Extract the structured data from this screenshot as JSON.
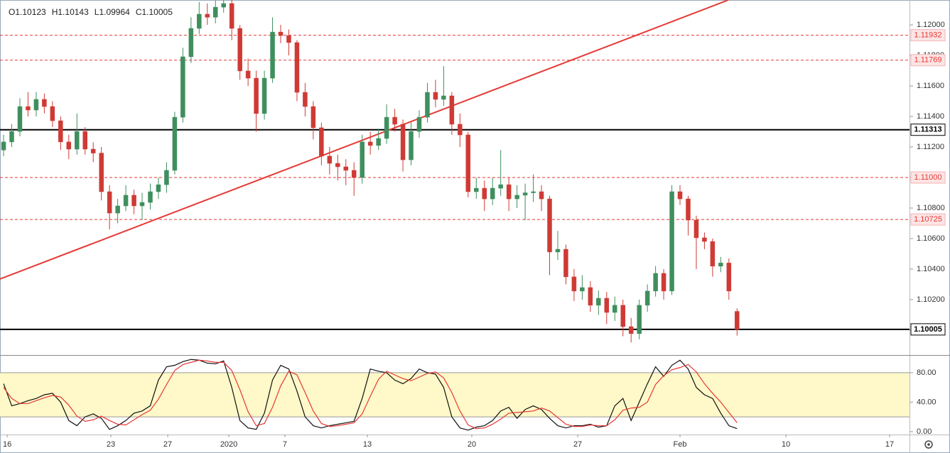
{
  "chart_data": {
    "type": "candlestick",
    "ohlc_legend": [
      "O1.10123",
      "H1.10143",
      "L1.09964",
      "C1.10005"
    ],
    "open": [
      1.1118,
      1.11233,
      1.11302,
      1.11465,
      1.11442,
      1.11512,
      1.11465,
      1.11372,
      1.11233,
      1.11186,
      1.11302,
      1.11186,
      1.1116,
      1.10907,
      1.10767,
      1.10814,
      1.10884,
      1.10814,
      1.10837,
      1.10907,
      1.10953,
      1.11047,
      1.11395,
      1.11791,
      1.11977,
      1.1207,
      1.1205,
      1.12116,
      1.1214,
      1.11977,
      1.11698,
      1.11651,
      1.11419,
      1.11651,
      1.11953,
      1.1193,
      1.11884,
      1.11558,
      1.11465,
      1.11326,
      1.1114,
      1.11093,
      1.1107,
      1.11047,
      1.11,
      1.11233,
      1.1121,
      1.11256,
      1.11395,
      1.11349,
      1.11116,
      1.11302,
      1.11395,
      1.11558,
      1.11512,
      1.11535,
      1.11349,
      1.11279,
      1.10907,
      1.1093,
      1.1086,
      1.1093,
      1.10953,
      1.1086,
      1.10884,
      1.109,
      1.10907,
      1.1086,
      1.10512,
      1.1053,
      1.10349,
      1.10256,
      1.10279,
      1.10163,
      1.10209,
      1.10116,
      1.10163,
      1.10023,
      1.09977,
      1.10163,
      1.10256,
      1.10372,
      1.10256,
      1.10907,
      1.1086,
      1.10721,
      1.10605,
      1.10581,
      1.10419,
      1.1044,
      1.10123
    ],
    "high": [
      1.1128,
      1.1135,
      1.1152,
      1.1156,
      1.1156,
      1.1155,
      1.115,
      1.114,
      1.1128,
      1.1142,
      1.1133,
      1.1123,
      1.112,
      1.1095,
      1.1086,
      1.1095,
      1.1092,
      1.109,
      1.1096,
      1.11,
      1.111,
      1.1143,
      1.1185,
      1.1205,
      1.1215,
      1.1214,
      1.1216,
      1.1217,
      1.1217,
      1.12,
      1.1178,
      1.117,
      1.117,
      1.1205,
      1.12,
      1.1197,
      1.119,
      1.1162,
      1.115,
      1.1136,
      1.112,
      1.1115,
      1.1112,
      1.111,
      1.1128,
      1.113,
      1.1132,
      1.1148,
      1.1145,
      1.1138,
      1.1136,
      1.1144,
      1.1162,
      1.1164,
      1.1173,
      1.1156,
      1.1142,
      1.113,
      1.11,
      1.1098,
      1.11,
      1.1118,
      1.11,
      1.1095,
      1.1096,
      1.1102,
      1.1095,
      1.1088,
      1.1065,
      1.1056,
      1.104,
      1.1036,
      1.1032,
      1.1026,
      1.1025,
      1.1022,
      1.102,
      1.1008,
      1.102,
      1.103,
      1.1042,
      1.104,
      1.1095,
      1.1095,
      1.1088,
      1.1075,
      1.1064,
      1.106,
      1.1048,
      1.1047,
      1.10143
    ],
    "low": [
      1.1114,
      1.112,
      1.1127,
      1.114,
      1.114,
      1.1142,
      1.1133,
      1.1118,
      1.1112,
      1.1115,
      1.1115,
      1.111,
      1.1085,
      1.1066,
      1.107,
      1.1078,
      1.1076,
      1.1072,
      1.1079,
      1.1086,
      1.109,
      1.1102,
      1.1136,
      1.1175,
      1.1194,
      1.12,
      1.1201,
      1.1208,
      1.119,
      1.1164,
      1.116,
      1.113,
      1.1138,
      1.1162,
      1.1188,
      1.118,
      1.115,
      1.114,
      1.1125,
      1.1108,
      1.1102,
      1.1098,
      1.1095,
      1.1088,
      1.1096,
      1.1115,
      1.1118,
      1.1122,
      1.113,
      1.1104,
      1.1108,
      1.1126,
      1.1136,
      1.1146,
      1.1147,
      1.1128,
      1.112,
      1.1087,
      1.1086,
      1.1078,
      1.1082,
      1.1088,
      1.1078,
      1.108,
      1.1072,
      1.1084,
      1.1078,
      1.1036,
      1.1046,
      1.103,
      1.1019,
      1.102,
      1.1012,
      1.101,
      1.1004,
      1.1006,
      1.0996,
      1.0992,
      1.0994,
      1.1012,
      1.1022,
      1.102,
      1.1023,
      1.1082,
      1.1062,
      1.104,
      1.1053,
      1.1035,
      1.1038,
      1.102,
      1.09964
    ],
    "close": [
      1.11233,
      1.11302,
      1.11465,
      1.11442,
      1.11512,
      1.11465,
      1.11372,
      1.11233,
      1.11186,
      1.11302,
      1.11186,
      1.1116,
      1.10907,
      1.10767,
      1.10814,
      1.10884,
      1.10814,
      1.10837,
      1.10907,
      1.10953,
      1.11047,
      1.11395,
      1.11791,
      1.11977,
      1.1207,
      1.1205,
      1.12116,
      1.1214,
      1.11977,
      1.11698,
      1.11651,
      1.11419,
      1.11651,
      1.11953,
      1.1193,
      1.11884,
      1.11558,
      1.11465,
      1.11326,
      1.1114,
      1.11093,
      1.1107,
      1.11047,
      1.11,
      1.11233,
      1.1121,
      1.11256,
      1.11395,
      1.11349,
      1.11116,
      1.11302,
      1.11395,
      1.11558,
      1.11512,
      1.11535,
      1.11349,
      1.11279,
      1.10907,
      1.1093,
      1.1086,
      1.1093,
      1.10953,
      1.1086,
      1.10884,
      1.109,
      1.10907,
      1.1086,
      1.10512,
      1.1053,
      1.10349,
      1.10256,
      1.10279,
      1.10163,
      1.10209,
      1.10116,
      1.10163,
      1.10023,
      1.09977,
      1.10163,
      1.10256,
      1.10372,
      1.10256,
      1.10907,
      1.1086,
      1.10721,
      1.10605,
      1.10581,
      1.10419,
      1.1044,
      1.10256,
      1.10005
    ],
    "up_color": "#3f8f5e",
    "down_color": "#cf3a35",
    "xlim": [
      -0.44,
      111.16
    ],
    "xticks": [
      {
        "value": 0.44,
        "label": "16"
      },
      {
        "value": 13.16,
        "label": "23"
      },
      {
        "value": 20.14,
        "label": "27"
      },
      {
        "value": 27.64,
        "label": "2020"
      },
      {
        "value": 34.52,
        "label": "7"
      },
      {
        "value": 44.64,
        "label": "13"
      },
      {
        "value": 57.45,
        "label": "20"
      },
      {
        "value": 70.45,
        "label": "27"
      },
      {
        "value": 83.0,
        "label": "Feb"
      },
      {
        "value": 96.0,
        "label": "10"
      },
      {
        "value": 108.72,
        "label": "17"
      }
    ],
    "ylim": [
      1.09837,
      1.12163
    ],
    "yticks": [
      {
        "value": 1.12,
        "label": "1.12000"
      },
      {
        "value": 1.118,
        "label": "1.11800"
      },
      {
        "value": 1.116,
        "label": "1.11600"
      },
      {
        "value": 1.114,
        "label": "1.11400"
      },
      {
        "value": 1.112,
        "label": "1.11200"
      },
      {
        "value": 1.11,
        "label": "1.11000"
      },
      {
        "value": 1.108,
        "label": "1.10800"
      },
      {
        "value": 1.106,
        "label": "1.10600"
      },
      {
        "value": 1.104,
        "label": "1.10400"
      },
      {
        "value": 1.102,
        "label": "1.10200"
      },
      {
        "value": 1.1,
        "label": "1.10000"
      }
    ],
    "levels": [
      {
        "value": 1.11932,
        "label": "1.11932",
        "color": "#e53935",
        "dashed": true
      },
      {
        "value": 1.11769,
        "label": "1.11769",
        "color": "#e53935",
        "dashed": true
      },
      {
        "value": 1.11313,
        "label": "1.11313",
        "color": "#000000",
        "dashed": false
      },
      {
        "value": 1.11,
        "label": "1.11000",
        "color": "#e53935",
        "dashed": true
      },
      {
        "value": 1.10725,
        "label": "1.10725",
        "color": "#e53935",
        "dashed": true
      },
      {
        "value": 1.10005,
        "label": "1.10005",
        "color": "#000000",
        "dashed": false
      }
    ],
    "trend_line": {
      "x": [
        -0.44,
        88.93
      ],
      "y": [
        1.10335,
        1.12163
      ],
      "color": "#e53935"
    },
    "stochastic": {
      "ylim": [
        -4,
        104
      ],
      "yticks": [
        {
          "value": 80,
          "label": "80.00"
        },
        {
          "value": 40,
          "label": "40.00"
        },
        {
          "value": 0,
          "label": "0.00"
        }
      ],
      "band": [
        20,
        80
      ],
      "band_color": "#fff8c8",
      "series": [
        {
          "color": "#111111",
          "values": [
            65,
            35,
            38,
            42,
            45,
            50,
            52,
            40,
            15,
            8,
            20,
            24,
            18,
            3,
            8,
            15,
            25,
            28,
            35,
            70,
            88,
            90,
            95,
            98,
            97,
            93,
            92,
            96,
            60,
            15,
            5,
            3,
            25,
            70,
            90,
            85,
            55,
            20,
            8,
            5,
            8,
            10,
            12,
            14,
            45,
            85,
            82,
            80,
            70,
            65,
            72,
            85,
            80,
            78,
            60,
            20,
            5,
            2,
            6,
            8,
            15,
            28,
            33,
            18,
            30,
            35,
            30,
            18,
            8,
            5,
            8,
            8,
            10,
            6,
            8,
            35,
            45,
            15,
            40,
            65,
            88,
            75,
            90,
            97,
            85,
            60,
            50,
            45,
            25,
            8,
            4
          ]
        },
        {
          "color": "#e53935",
          "values": [
            60,
            45,
            38,
            38,
            42,
            46,
            49,
            47,
            36,
            21,
            14,
            16,
            21,
            15,
            10,
            9,
            16,
            23,
            29,
            44,
            64,
            83,
            91,
            94,
            97,
            96,
            94,
            94,
            83,
            57,
            27,
            8,
            11,
            33,
            62,
            82,
            77,
            53,
            28,
            11,
            7,
            8,
            10,
            12,
            24,
            48,
            71,
            82,
            77,
            72,
            69,
            74,
            79,
            81,
            73,
            53,
            28,
            9,
            4,
            5,
            10,
            17,
            25,
            26,
            27,
            28,
            32,
            28,
            19,
            10,
            7,
            7,
            9,
            8,
            8,
            16,
            29,
            32,
            33,
            40,
            64,
            76,
            84,
            87,
            91,
            81,
            65,
            52,
            40,
            26,
            12
          ]
        }
      ]
    }
  }
}
